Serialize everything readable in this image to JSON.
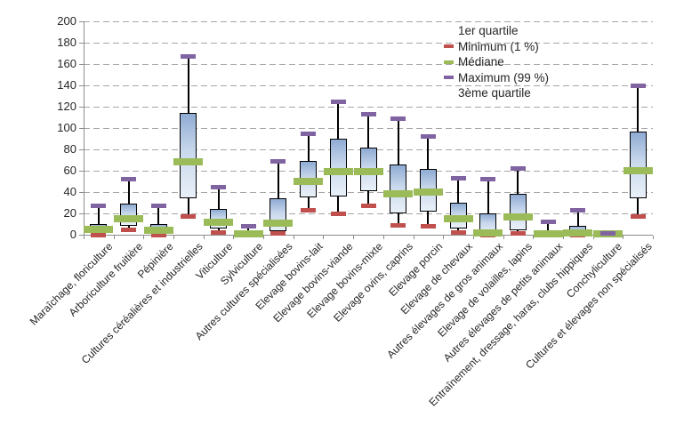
{
  "chart_data": {
    "type": "boxplot",
    "title": "",
    "xlabel": "",
    "ylabel": "",
    "ylim": [
      0,
      200
    ],
    "yticks": [
      0,
      20,
      40,
      60,
      80,
      100,
      120,
      140,
      160,
      180,
      200
    ],
    "grid": true,
    "legend_position": "top-right-inside",
    "legend": [
      {
        "label": "1er quartile",
        "color": null
      },
      {
        "label": "Minimum (1 %)",
        "color": "#c0504d"
      },
      {
        "label": "Médiane",
        "color": "#9bbb59"
      },
      {
        "label": "Maximum (99 %)",
        "color": "#8064a2"
      },
      {
        "label": "3ème quartile",
        "color": null
      }
    ],
    "box_value_order": [
      "min",
      "q1",
      "median",
      "q3",
      "max"
    ],
    "categories": [
      "Maraîchage, floriculture",
      "Arboriculture fruitière",
      "Pépinière",
      "Cultures céréalières et industrielles",
      "Viticulture",
      "Sylviculture",
      "Autres cultures spécialisées",
      "Elevage bovins-lait",
      "Elevage bovins-viande",
      "Elevage bovins-mixte",
      "Elevage ovins, caprins",
      "Elevage porcin",
      "Elevage de chevaux",
      "Autres élevages de gros animaux",
      "Elevage de volailles, lapins",
      "Autres élevages de petits animaux",
      "Entraînement, dressage, haras, clubs hippiques",
      "Conchyliculture",
      "Cultures et élevages non spécialisés"
    ],
    "boxes": [
      [
        0,
        2,
        5,
        10,
        27
      ],
      [
        5,
        8,
        15,
        29,
        52
      ],
      [
        0,
        2,
        4,
        10,
        27
      ],
      [
        17,
        34,
        68,
        114,
        167
      ],
      [
        2,
        6,
        12,
        24,
        45
      ],
      [
        0,
        0,
        1,
        2,
        8
      ],
      [
        1,
        3,
        11,
        34,
        69
      ],
      [
        23,
        35,
        50,
        69,
        95
      ],
      [
        20,
        36,
        59,
        90,
        125
      ],
      [
        27,
        41,
        59,
        82,
        113
      ],
      [
        9,
        20,
        38,
        66,
        109
      ],
      [
        8,
        22,
        40,
        62,
        92
      ],
      [
        2,
        6,
        15,
        30,
        53
      ],
      [
        0,
        0,
        2,
        20,
        52
      ],
      [
        1,
        4,
        17,
        38,
        62
      ],
      [
        0,
        0,
        1,
        2,
        12
      ],
      [
        0,
        0,
        2,
        8,
        23
      ],
      [
        0,
        0,
        1,
        1,
        1
      ],
      [
        17,
        34,
        60,
        97,
        140
      ]
    ],
    "colors": {
      "median": "#9bbb59",
      "minimum": "#c0504d",
      "maximum": "#8064a2",
      "box_fill_top": "#8fabd3",
      "box_fill_bottom": "#e9f0f8",
      "box_border": "#000000",
      "gridline": "#a6a6a6",
      "axis": "#8c8c8c",
      "text": "#262626"
    }
  }
}
